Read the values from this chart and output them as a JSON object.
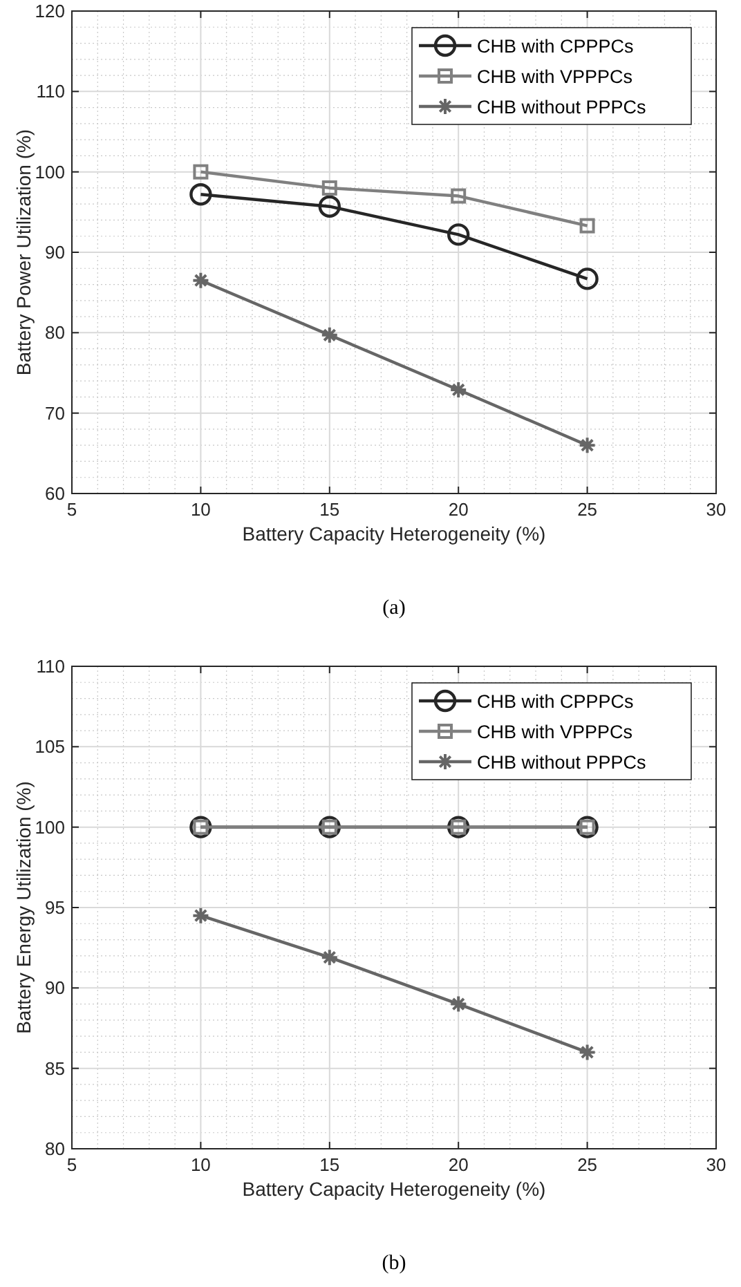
{
  "chart_data": [
    {
      "type": "line",
      "xlabel": "Battery Capacity Heterogeneity (%)",
      "ylabel": "Battery Power Utilization (%)",
      "annotations": [
        "(a)"
      ],
      "x": [
        10,
        15,
        20,
        25
      ],
      "xlim": [
        5,
        30
      ],
      "xticks": [
        5,
        10,
        15,
        20,
        25,
        30
      ],
      "ylim": [
        60,
        120
      ],
      "yticks": [
        60,
        70,
        80,
        90,
        100,
        110,
        120
      ],
      "grid": true,
      "legend": "top right",
      "line_style": "solid",
      "series": [
        {
          "name": "CHB with CPPPCs",
          "color": "#262626",
          "marker": "circle",
          "values": [
            97.2,
            95.7,
            92.2,
            86.7
          ]
        },
        {
          "name": "CHB with VPPPCs",
          "color": "#808080",
          "marker": "square",
          "values": [
            100,
            98,
            97,
            93.3
          ]
        },
        {
          "name": "CHB without PPPCs",
          "color": "#666666",
          "marker": "cross",
          "values": [
            86.5,
            79.7,
            72.9,
            66
          ]
        }
      ]
    },
    {
      "type": "line",
      "xlabel": "Battery Capacity Heterogeneity (%)",
      "ylabel": "Battery Energy Utilization (%)",
      "annotations": [
        "(b)"
      ],
      "x": [
        10,
        15,
        20,
        25
      ],
      "xlim": [
        5,
        30
      ],
      "xticks": [
        5,
        10,
        15,
        20,
        25,
        30
      ],
      "ylim": [
        80,
        110
      ],
      "yticks": [
        80,
        85,
        90,
        95,
        100,
        105,
        110
      ],
      "grid": true,
      "legend": "top right",
      "line_style": "solid",
      "series": [
        {
          "name": "CHB with CPPPCs",
          "color": "#262626",
          "marker": "circle",
          "values": [
            100,
            100,
            100,
            100
          ]
        },
        {
          "name": "CHB with VPPPCs",
          "color": "#808080",
          "marker": "square",
          "values": [
            100,
            100,
            100,
            100
          ]
        },
        {
          "name": "CHB without PPPCs",
          "color": "#666666",
          "marker": "cross",
          "values": [
            94.5,
            91.9,
            89,
            86
          ]
        }
      ]
    }
  ]
}
